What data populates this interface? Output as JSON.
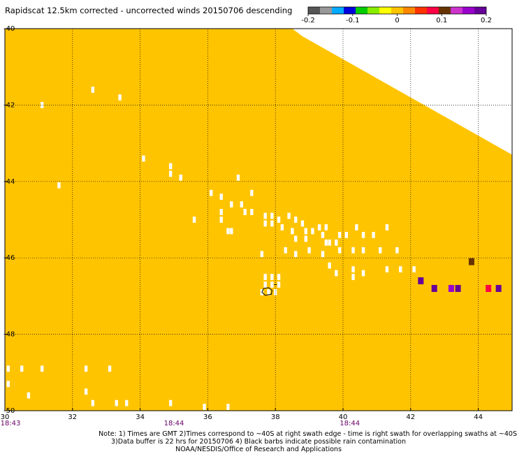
{
  "title": "Rapidscat 12.5km corrected - uncorrected winds 20150706 descending",
  "colorbar": {
    "colors": [
      "#555555",
      "#999999",
      "#00aaff",
      "#0000dd",
      "#00cc00",
      "#88ee00",
      "#ffff00",
      "#ffc400",
      "#ff8800",
      "#ff3300",
      "#ff0044",
      "#663300",
      "#cc33cc",
      "#9900cc",
      "#660099"
    ],
    "ticks": [
      {
        "value": -0.2,
        "label": "-0.2"
      },
      {
        "value": -0.1,
        "label": "-0.1"
      },
      {
        "value": 0,
        "label": "0"
      },
      {
        "value": 0.1,
        "label": "0.1"
      },
      {
        "value": 0.2,
        "label": "0.2"
      }
    ],
    "min": -0.2,
    "max": 0.2
  },
  "chart_data": {
    "type": "heatmap",
    "title": "Rapidscat 12.5km corrected - uncorrected winds 20150706 descending",
    "xlim": [
      30,
      45
    ],
    "ylim": [
      -50,
      -40
    ],
    "x_ticks": [
      "30",
      "32",
      "34",
      "36",
      "38",
      "40",
      "42",
      "44"
    ],
    "y_ticks": [
      "-40",
      "-42",
      "-44",
      "-46",
      "-48",
      "-50"
    ],
    "grid": true,
    "cell_size_deg": 0.2,
    "background_value": 0,
    "background_color": "#ffc400",
    "swath_edge": [
      [
        36.7,
        -40.0
      ],
      [
        38.5,
        -40.0
      ],
      [
        38.8,
        -40.2
      ],
      [
        39.2,
        -40.4
      ],
      [
        39.6,
        -40.6
      ],
      [
        40.0,
        -40.8
      ],
      [
        40.4,
        -41.0
      ],
      [
        40.8,
        -41.2
      ],
      [
        41.2,
        -41.4
      ],
      [
        41.6,
        -41.6
      ],
      [
        42.0,
        -41.8
      ],
      [
        42.4,
        -42.0
      ],
      [
        42.8,
        -42.2
      ],
      [
        43.2,
        -42.4
      ],
      [
        43.6,
        -42.6
      ],
      [
        44.0,
        -42.8
      ],
      [
        44.4,
        -43.0
      ],
      [
        44.8,
        -43.2
      ],
      [
        45.0,
        -43.3
      ]
    ],
    "missing_cells": [
      [
        31.1,
        -42.0
      ],
      [
        32.6,
        -41.6
      ],
      [
        33.4,
        -41.8
      ],
      [
        34.1,
        -43.4
      ],
      [
        34.9,
        -43.6
      ],
      [
        34.9,
        -43.8
      ],
      [
        35.2,
        -43.9
      ],
      [
        31.6,
        -44.1
      ],
      [
        36.1,
        -44.3
      ],
      [
        36.4,
        -44.4
      ],
      [
        36.9,
        -43.9
      ],
      [
        37.3,
        -44.3
      ],
      [
        36.7,
        -44.6
      ],
      [
        37.0,
        -44.6
      ],
      [
        37.1,
        -44.8
      ],
      [
        37.3,
        -44.8
      ],
      [
        36.4,
        -44.8
      ],
      [
        36.4,
        -45.0
      ],
      [
        35.6,
        -45.0
      ],
      [
        36.6,
        -45.3
      ],
      [
        36.7,
        -45.3
      ],
      [
        37.7,
        -44.9
      ],
      [
        37.7,
        -45.1
      ],
      [
        37.9,
        -44.9
      ],
      [
        37.9,
        -45.1
      ],
      [
        38.1,
        -45.0
      ],
      [
        38.2,
        -45.2
      ],
      [
        38.4,
        -44.9
      ],
      [
        38.6,
        -45.0
      ],
      [
        38.8,
        -45.1
      ],
      [
        38.5,
        -45.3
      ],
      [
        38.9,
        -45.3
      ],
      [
        39.1,
        -45.3
      ],
      [
        38.6,
        -45.5
      ],
      [
        38.9,
        -45.5
      ],
      [
        39.3,
        -45.2
      ],
      [
        39.5,
        -45.2
      ],
      [
        39.4,
        -45.4
      ],
      [
        39.5,
        -45.6
      ],
      [
        39.6,
        -45.6
      ],
      [
        39.8,
        -45.6
      ],
      [
        39.9,
        -45.4
      ],
      [
        40.1,
        -45.4
      ],
      [
        40.4,
        -45.2
      ],
      [
        40.6,
        -45.4
      ],
      [
        40.9,
        -45.4
      ],
      [
        41.3,
        -45.2
      ],
      [
        39.9,
        -45.8
      ],
      [
        40.3,
        -45.8
      ],
      [
        40.6,
        -45.8
      ],
      [
        38.3,
        -45.8
      ],
      [
        38.6,
        -45.9
      ],
      [
        39.0,
        -45.8
      ],
      [
        39.4,
        -45.9
      ],
      [
        37.6,
        -45.9
      ],
      [
        39.6,
        -46.2
      ],
      [
        39.8,
        -46.4
      ],
      [
        40.3,
        -46.3
      ],
      [
        40.3,
        -46.5
      ],
      [
        40.6,
        -46.4
      ],
      [
        41.1,
        -45.8
      ],
      [
        41.6,
        -45.8
      ],
      [
        41.3,
        -46.3
      ],
      [
        41.7,
        -46.3
      ],
      [
        42.1,
        -46.3
      ],
      [
        37.7,
        -46.5
      ],
      [
        37.9,
        -46.5
      ],
      [
        38.1,
        -46.5
      ],
      [
        37.7,
        -46.7
      ],
      [
        37.9,
        -46.7
      ],
      [
        38.1,
        -46.7
      ],
      [
        37.6,
        -46.9
      ],
      [
        37.8,
        -46.9
      ],
      [
        38.0,
        -46.9
      ],
      [
        30.1,
        -48.9
      ],
      [
        30.5,
        -48.9
      ],
      [
        31.1,
        -48.9
      ],
      [
        32.4,
        -48.9
      ],
      [
        33.1,
        -48.9
      ],
      [
        30.1,
        -49.3
      ],
      [
        32.4,
        -49.5
      ],
      [
        30.7,
        -49.6
      ],
      [
        32.6,
        -49.8
      ],
      [
        33.3,
        -49.8
      ],
      [
        33.6,
        -49.8
      ],
      [
        34.9,
        -49.8
      ],
      [
        35.9,
        -49.9
      ],
      [
        36.6,
        -49.9
      ]
    ],
    "points": [
      {
        "lon": 42.3,
        "lat": -46.6,
        "value": 0.18
      },
      {
        "lon": 42.7,
        "lat": -46.8,
        "value": 0.18
      },
      {
        "lon": 43.2,
        "lat": -46.8,
        "value": 0.16
      },
      {
        "lon": 43.4,
        "lat": -46.8,
        "value": 0.19
      },
      {
        "lon": 43.8,
        "lat": -46.1,
        "value": 0.1
      },
      {
        "lon": 44.3,
        "lat": -46.8,
        "value": 0.07
      },
      {
        "lon": 44.6,
        "lat": -46.8,
        "value": 0.19
      }
    ],
    "rain_flag_contour": [
      [
        37.65,
        -46.8
      ],
      [
        37.8,
        -46.78
      ],
      [
        37.9,
        -46.85
      ],
      [
        37.88,
        -46.95
      ],
      [
        37.7,
        -46.98
      ],
      [
        37.6,
        -46.9
      ]
    ],
    "rain_flag_marker": {
      "lon": 38.0,
      "lat": -46.7
    },
    "time_labels": [
      {
        "lon": 30.0,
        "text": "18:43"
      },
      {
        "lon": 35.0,
        "text": "18:44"
      },
      {
        "lon": 40.2,
        "text": "18:44"
      }
    ]
  },
  "notes": [
    "Note: 1) Times are GMT 2)Times correspond to ~40S at right swath edge - time is right swath for overlapping swaths at ~40S",
    "3)Data buffer is 22 hrs for 20150706 4) Black barbs indicate possible rain contamination",
    "NOAA/NESDIS/Office of Research and Applications"
  ]
}
